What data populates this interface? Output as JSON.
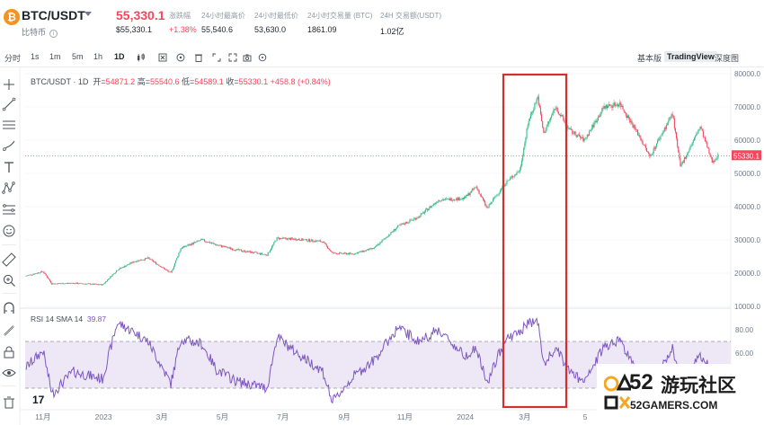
{
  "header": {
    "coin_glyph": "₿",
    "pair": "BTC/USDT",
    "coin_name": "比特币",
    "info_glyph": "i",
    "price": "55,330.1",
    "price_sub": "$55,330.1",
    "stats": [
      {
        "label": "涨跌幅",
        "value": "+1.38%",
        "color": "red"
      },
      {
        "label": "24小时最高价",
        "value": "55,540.6"
      },
      {
        "label": "24小时最低价",
        "value": "53,630.0"
      },
      {
        "label": "24小时交易量 (BTC)",
        "value": "1861.09"
      },
      {
        "label": "24H 交易额(USDT)",
        "value": "1.02亿"
      }
    ]
  },
  "toolbar": {
    "timeframes": [
      "分时",
      "1s",
      "1m",
      "5m",
      "1h",
      "1D"
    ],
    "active_timeframe": "1D",
    "tool_icons": [
      "candles-icon",
      "settings-icon",
      "indicator-icon",
      "fit-icon",
      "fullscreen-icon",
      "camera-icon",
      "crosshair-icon",
      "refresh-icon"
    ],
    "modes": [
      "基本版",
      "TradingView",
      "深度图"
    ],
    "active_mode": "TradingView"
  },
  "left_tools": [
    "crosshair-icon",
    "trendline-icon",
    "horizontal-lines-icon",
    "channel-icon",
    "brush-icon",
    "text-icon",
    "pattern-icon",
    "forecast-icon",
    "emoji-icon",
    "ruler-icon",
    "zoom-icon",
    "magnet-icon",
    "pencil-lock-icon",
    "lock-icon",
    "eye-icon",
    "trash-icon"
  ],
  "legend": {
    "symbol": "BTC/USDT · 1D",
    "open_label": "开=",
    "open": "54871.2",
    "high_label": "高=",
    "high": "55540.6",
    "low_label": "低=",
    "low": "54589.1",
    "close_label": "收=",
    "close": "55330.1",
    "change": "+458.8 (+0.84%)"
  },
  "rsi_legend": {
    "label": "RSI 14 SMA 14",
    "value": "39.87"
  },
  "tv_logo": "17",
  "watermark": {
    "number": "52",
    "text": "游玩社区",
    "sub": "52GAMERS.COM"
  },
  "colors": {
    "up": "#2ebd85",
    "down": "#f6465d",
    "rsi_line": "#7e57c2",
    "rsi_band": "#ede7f6",
    "highlight_box": "#d32f2f"
  },
  "chart_data": [
    {
      "type": "candlestick",
      "title": "BTC/USDT · 1D",
      "ylim": [
        10000,
        80000
      ],
      "y_ticks": [
        "80000.0",
        "70000.0",
        "60000.0",
        "50000.0",
        "40000.0",
        "30000.0",
        "20000.0",
        "10000.0"
      ],
      "x_ticks": [
        "11月",
        "2023",
        "3月",
        "5月",
        "7月",
        "9月",
        "11月",
        "2024",
        "3月",
        "5"
      ],
      "current_price_label": "55330.1",
      "series": [
        {
          "points": [
            [
              "2022-10-15",
              19200
            ],
            [
              "2022-11-01",
              20500
            ],
            [
              "2022-11-10",
              16800
            ],
            [
              "2022-12-01",
              17000
            ],
            [
              "2022-12-31",
              16500
            ],
            [
              "2023-01-15",
              21000
            ],
            [
              "2023-02-01",
              23500
            ],
            [
              "2023-02-15",
              24500
            ],
            [
              "2023-03-10",
              20000
            ],
            [
              "2023-03-20",
              27500
            ],
            [
              "2023-04-10",
              30000
            ],
            [
              "2023-04-25",
              28500
            ],
            [
              "2023-05-15",
              27000
            ],
            [
              "2023-06-15",
              25500
            ],
            [
              "2023-06-25",
              30500
            ],
            [
              "2023-07-15",
              30200
            ],
            [
              "2023-08-10",
              29500
            ],
            [
              "2023-08-20",
              26000
            ],
            [
              "2023-09-10",
              25800
            ],
            [
              "2023-10-01",
              27500
            ],
            [
              "2023-10-25",
              34000
            ],
            [
              "2023-11-15",
              37000
            ],
            [
              "2023-12-05",
              42000
            ],
            [
              "2023-12-31",
              42500
            ],
            [
              "2024-01-12",
              46000
            ],
            [
              "2024-01-23",
              39500
            ],
            [
              "2024-02-10",
              47000
            ],
            [
              "2024-02-25",
              51000
            ],
            [
              "2024-03-05",
              66000
            ],
            [
              "2024-03-14",
              73000
            ],
            [
              "2024-03-20",
              62000
            ],
            [
              "2024-04-01",
              70000
            ],
            [
              "2024-04-15",
              63000
            ],
            [
              "2024-04-30",
              60000
            ],
            [
              "2024-05-20",
              70000
            ],
            [
              "2024-06-05",
              71000
            ],
            [
              "2024-06-25",
              61000
            ],
            [
              "2024-07-05",
              55000
            ],
            [
              "2024-07-28",
              68000
            ],
            [
              "2024-08-05",
              52000
            ],
            [
              "2024-08-25",
              64000
            ],
            [
              "2024-09-06",
              53500
            ],
            [
              "2024-09-12",
              55330.1
            ]
          ]
        }
      ]
    },
    {
      "type": "line",
      "title": "RSI 14 SMA 14",
      "ylim": [
        20,
        90
      ],
      "y_ticks": [
        "80.00",
        "60.00"
      ],
      "bands": [
        30,
        70
      ],
      "series": [
        {
          "name": "RSI",
          "points": [
            [
              "2022-10-15",
              48
            ],
            [
              "2022-11-01",
              62
            ],
            [
              "2022-11-10",
              25
            ],
            [
              "2022-12-01",
              44
            ],
            [
              "2022-12-31",
              38
            ],
            [
              "2023-01-15",
              86
            ],
            [
              "2023-02-01",
              78
            ],
            [
              "2023-02-15",
              70
            ],
            [
              "2023-03-10",
              34
            ],
            [
              "2023-03-20",
              72
            ],
            [
              "2023-04-10",
              68
            ],
            [
              "2023-04-25",
              46
            ],
            [
              "2023-05-15",
              36
            ],
            [
              "2023-06-15",
              30
            ],
            [
              "2023-06-25",
              74
            ],
            [
              "2023-07-15",
              60
            ],
            [
              "2023-08-10",
              45
            ],
            [
              "2023-08-20",
              18
            ],
            [
              "2023-09-10",
              40
            ],
            [
              "2023-10-01",
              54
            ],
            [
              "2023-10-25",
              82
            ],
            [
              "2023-11-15",
              70
            ],
            [
              "2023-12-05",
              80
            ],
            [
              "2023-12-31",
              58
            ],
            [
              "2024-01-12",
              64
            ],
            [
              "2024-01-23",
              34
            ],
            [
              "2024-02-10",
              72
            ],
            [
              "2024-02-25",
              78
            ],
            [
              "2024-03-05",
              86
            ],
            [
              "2024-03-14",
              88
            ],
            [
              "2024-03-20",
              50
            ],
            [
              "2024-04-01",
              64
            ],
            [
              "2024-04-15",
              45
            ],
            [
              "2024-04-30",
              34
            ],
            [
              "2024-05-20",
              66
            ],
            [
              "2024-06-05",
              72
            ],
            [
              "2024-06-25",
              38
            ],
            [
              "2024-07-05",
              28
            ],
            [
              "2024-07-28",
              64
            ],
            [
              "2024-08-05",
              32
            ],
            [
              "2024-08-25",
              58
            ],
            [
              "2024-09-06",
              44
            ],
            [
              "2024-09-12",
              39.87
            ]
          ]
        }
      ]
    }
  ]
}
